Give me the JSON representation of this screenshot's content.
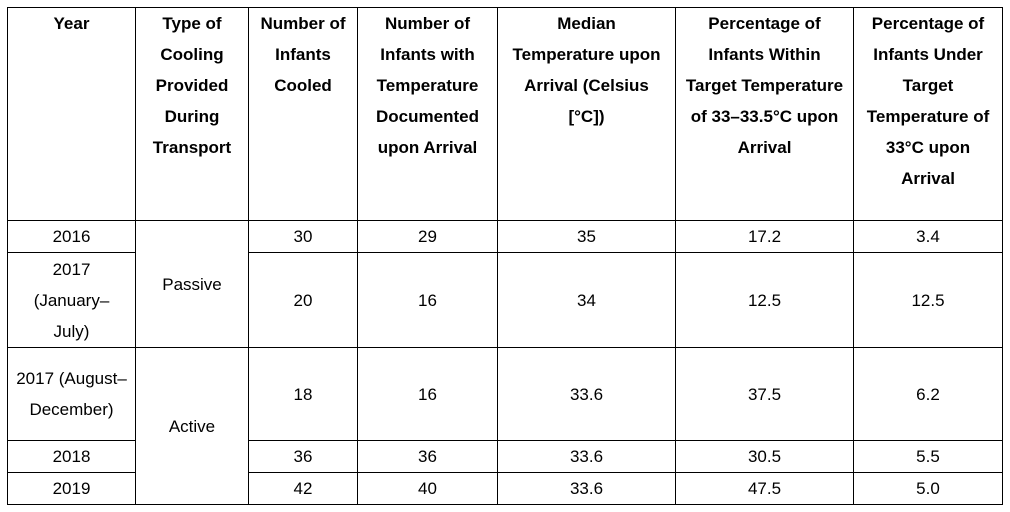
{
  "table": {
    "header": [
      "Year",
      "Type of Cooling Provided During Transport",
      "Number of Infants Cooled",
      "Number of Infants with Temperature Documented upon Arrival",
      "Median Temperature upon Arrival (Celsius [°C])",
      "Percentage of Infants Within Target Temperature of 33–33.5°C upon Arrival",
      "Percentage of Infants Under Target Temperature of 33°C upon Arrival"
    ],
    "groups": [
      {
        "cooling": "Passive",
        "rows": [
          [
            "2016",
            "30",
            "29",
            "35",
            "17.2",
            "3.4"
          ],
          [
            "2017 (January–July)",
            "20",
            "16",
            "34",
            "12.5",
            "12.5"
          ]
        ]
      },
      {
        "cooling": "Active",
        "rows": [
          [
            "2017 (August–December)",
            "18",
            "16",
            "33.6",
            "37.5",
            "6.2"
          ],
          [
            "2018",
            "36",
            "36",
            "33.6",
            "30.5",
            "5.5"
          ],
          [
            "2019",
            "42",
            "40",
            "33.6",
            "47.5",
            "5.0"
          ]
        ]
      }
    ]
  }
}
